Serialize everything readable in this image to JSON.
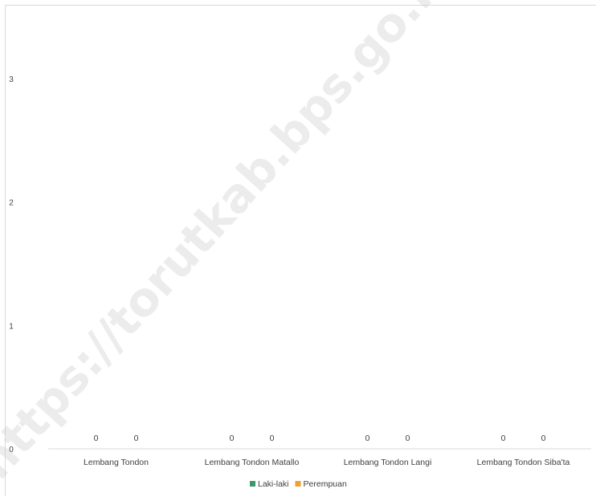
{
  "chart_data": {
    "type": "bar",
    "categories": [
      "Lembang Tondon",
      "Lembang Tondon Matallo",
      "Lembang Tondon Langi",
      "Lembang Tondon Siba'ta"
    ],
    "series": [
      {
        "name": "Laki-laki",
        "values": [
          0,
          0,
          0,
          0
        ],
        "color": "#3a9a6a"
      },
      {
        "name": "Perempuan",
        "values": [
          0,
          0,
          0,
          0
        ],
        "color": "#f0a030"
      }
    ],
    "ylim": [
      0,
      3
    ],
    "yticks": [
      "0",
      "1",
      "2",
      "3"
    ],
    "grid": false,
    "legend_position": "bottom"
  },
  "watermark": "https://torutkab.bps.go.id"
}
